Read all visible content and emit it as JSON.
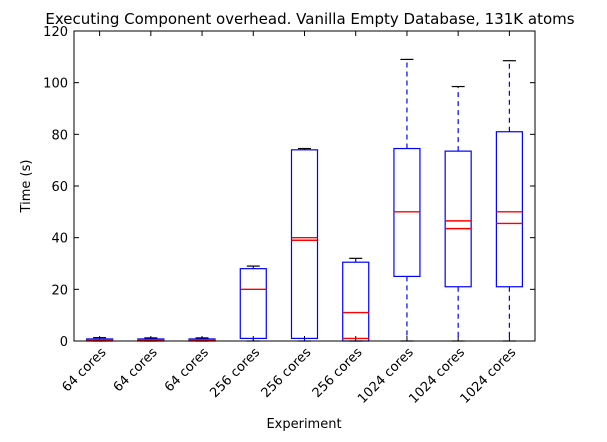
{
  "chart_data": {
    "type": "box",
    "title": "Executing Component overhead. Vanilla Empty Database, 131K atoms",
    "xlabel": "Experiment",
    "ylabel": "Time (s)",
    "ylim": [
      0,
      120
    ],
    "yticks": [
      0,
      20,
      40,
      60,
      80,
      100,
      120
    ],
    "categories": [
      "64 cores",
      "64 cores",
      "64 cores",
      "256 cores",
      "256 cores",
      "256 cores",
      "1024 cores",
      "1024 cores",
      "1024 cores"
    ],
    "boxes": [
      {
        "min": 0,
        "q1": 0,
        "median": 0.3,
        "second_median": 0.5,
        "q3": 0.8,
        "max": 1.3
      },
      {
        "min": 0,
        "q1": 0,
        "median": 0.3,
        "second_median": 0.5,
        "q3": 0.8,
        "max": 1.2
      },
      {
        "min": 0,
        "q1": 0,
        "median": 0.3,
        "second_median": 0.5,
        "q3": 0.8,
        "max": 1.2
      },
      {
        "min": 0,
        "q1": 1,
        "median": 20,
        "q3": 28,
        "max": 29
      },
      {
        "min": 0,
        "q1": 1,
        "median": 39,
        "second_median": 40,
        "q3": 74,
        "max": 74.5
      },
      {
        "min": 0,
        "q1": 0,
        "median": 1,
        "second_median": 11,
        "q3": 30.5,
        "max": 32
      },
      {
        "min": 0,
        "q1": 25,
        "median": 50,
        "q3": 74.5,
        "max": 109
      },
      {
        "min": 0,
        "q1": 21,
        "median": 43.5,
        "second_median": 46.5,
        "q3": 73.5,
        "max": 98.5
      },
      {
        "min": 0,
        "q1": 21,
        "median": 45.5,
        "second_median": 50,
        "q3": 81,
        "max": 108.5
      }
    ],
    "box_color": "#0000ff",
    "median_color": "#ff0000",
    "whisker_style": "dashed",
    "grid": false,
    "legend": null
  }
}
